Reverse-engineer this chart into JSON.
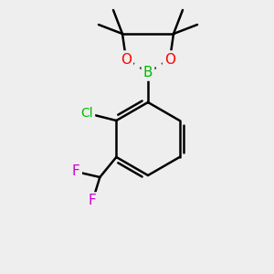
{
  "background_color": "#eeeeee",
  "bond_color": "#000000",
  "bond_width": 1.8,
  "atom_colors": {
    "B": "#00bb00",
    "O": "#ff0000",
    "Cl": "#00bb00",
    "F": "#cc00cc",
    "C": "#000000"
  },
  "figsize": [
    3.0,
    3.0
  ],
  "dpi": 100
}
